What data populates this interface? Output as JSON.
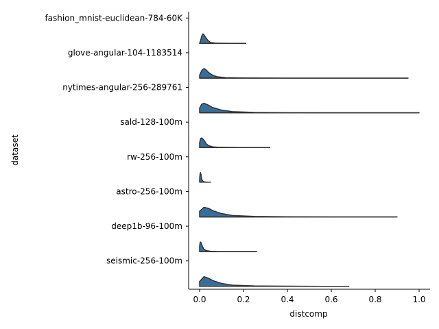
{
  "chart_data": {
    "type": "violin",
    "orientation": "horizontal",
    "split": "upper-half",
    "xlabel": "distcomp",
    "ylabel": "dataset",
    "xlim": [
      -0.05,
      1.05
    ],
    "xticks": [
      0.0,
      0.2,
      0.4,
      0.6,
      0.8,
      1.0
    ],
    "xtick_labels": [
      "0.0",
      "0.2",
      "0.4",
      "0.6",
      "0.8",
      "1.0"
    ],
    "grid": false,
    "fill_color": "#3a6e9a",
    "line_color": "#333333",
    "categories": [
      "fashion_mnist-euclidean-784-60K",
      "glove-angular-104-1183514",
      "nytimes-angular-256-289761",
      "sald-128-100m",
      "rw-256-100m",
      "astro-256-100m",
      "deep1b-96-100m",
      "seismic-256-100m"
    ],
    "series": [
      {
        "category": "fashion_mnist-euclidean-784-60K",
        "min": 0.0,
        "max": 0.21,
        "density_x": [
          0.0,
          0.005,
          0.01,
          0.015,
          0.02,
          0.03,
          0.04,
          0.05,
          0.07,
          0.1,
          0.15,
          0.21
        ],
        "density": [
          0.0,
          0.35,
          0.8,
          1.0,
          0.9,
          0.55,
          0.25,
          0.1,
          0.03,
          0.01,
          0.0,
          0.0
        ]
      },
      {
        "category": "glove-angular-104-1183514",
        "min": 0.0,
        "max": 0.95,
        "density_x": [
          0.0,
          0.01,
          0.02,
          0.03,
          0.04,
          0.06,
          0.08,
          0.12,
          0.2,
          0.4,
          0.7,
          0.95
        ],
        "density": [
          0.3,
          0.8,
          1.0,
          0.85,
          0.6,
          0.3,
          0.14,
          0.05,
          0.02,
          0.0,
          0.0,
          0.0
        ]
      },
      {
        "category": "nytimes-angular-256-289761",
        "min": 0.0,
        "max": 1.0,
        "density_x": [
          0.0,
          0.01,
          0.02,
          0.04,
          0.06,
          0.1,
          0.15,
          0.25,
          0.4,
          0.7,
          1.0
        ],
        "density": [
          0.5,
          0.9,
          1.0,
          0.8,
          0.55,
          0.28,
          0.12,
          0.04,
          0.01,
          0.0,
          0.0
        ]
      },
      {
        "category": "sald-128-100m",
        "min": 0.0,
        "max": 0.32,
        "density_x": [
          0.0,
          0.005,
          0.01,
          0.02,
          0.03,
          0.04,
          0.06,
          0.08,
          0.12,
          0.2,
          0.32
        ],
        "density": [
          0.5,
          0.95,
          1.0,
          0.75,
          0.4,
          0.2,
          0.07,
          0.03,
          0.01,
          0.0,
          0.0
        ]
      },
      {
        "category": "rw-256-100m",
        "min": 0.0,
        "max": 0.05,
        "density_x": [
          0.0,
          0.002,
          0.004,
          0.006,
          0.008,
          0.01,
          0.015,
          0.02,
          0.03,
          0.04,
          0.05
        ],
        "density": [
          0.3,
          0.85,
          1.0,
          0.85,
          0.55,
          0.3,
          0.1,
          0.04,
          0.015,
          0.005,
          0.0
        ]
      },
      {
        "category": "astro-256-100m",
        "min": 0.0,
        "max": 0.9,
        "density_x": [
          0.0,
          0.02,
          0.04,
          0.06,
          0.1,
          0.15,
          0.25,
          0.4,
          0.6,
          0.9
        ],
        "density": [
          0.6,
          1.0,
          0.9,
          0.65,
          0.35,
          0.15,
          0.05,
          0.01,
          0.0,
          0.0
        ]
      },
      {
        "category": "deep1b-96-100m",
        "min": 0.0,
        "max": 0.26,
        "density_x": [
          0.0,
          0.003,
          0.006,
          0.01,
          0.015,
          0.02,
          0.03,
          0.05,
          0.08,
          0.15,
          0.26
        ],
        "density": [
          0.6,
          1.0,
          0.95,
          0.7,
          0.45,
          0.25,
          0.1,
          0.03,
          0.01,
          0.0,
          0.0
        ]
      },
      {
        "category": "seismic-256-100m",
        "min": 0.0,
        "max": 0.68,
        "density_x": [
          0.0,
          0.02,
          0.04,
          0.06,
          0.1,
          0.15,
          0.25,
          0.4,
          0.55,
          0.68
        ],
        "density": [
          0.5,
          1.0,
          0.85,
          0.6,
          0.3,
          0.12,
          0.04,
          0.01,
          0.0,
          0.0
        ]
      }
    ]
  }
}
